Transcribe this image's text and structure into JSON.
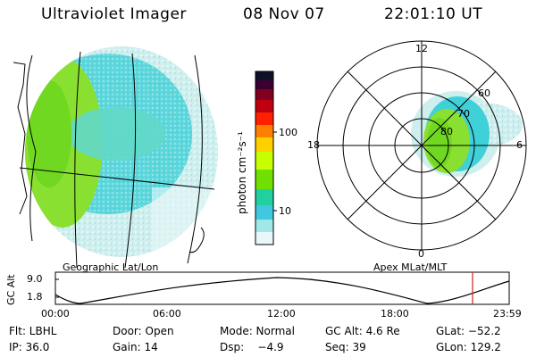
{
  "header": {
    "instrument": "Ultraviolet Imager",
    "date": "08 Nov 07",
    "time": "22:01:10 UT"
  },
  "panels": {
    "left_label": "Geographic Lat/Lon",
    "right_label": "Apex MLat/MLT"
  },
  "colorbar": {
    "label": "photon cm⁻²s⁻¹",
    "ticks": [
      "100",
      "10"
    ],
    "colors": [
      "#101028",
      "#3a0030",
      "#800020",
      "#c00010",
      "#ff2000",
      "#ff8000",
      "#ffd000",
      "#c8ff00",
      "#70e000",
      "#20d0a0",
      "#40c8e0",
      "#a0e8e8",
      "#e8f8f8"
    ]
  },
  "polar": {
    "hour_labels": {
      "top": "12",
      "left": "18",
      "right": "6",
      "bottom": "0"
    },
    "lat_labels": [
      "60",
      "70",
      "80"
    ]
  },
  "altitude_plot": {
    "ylabel": "GC Alt",
    "yticks": [
      "9.0",
      "1.8"
    ],
    "xticks": [
      "00:00",
      "06:00",
      "12:00",
      "18:00",
      "23:59"
    ],
    "marker_hours": 22.02,
    "marker_color": "#d02020"
  },
  "status": {
    "row1": [
      {
        "label": "Flt: LBHL"
      },
      {
        "label": "Door: Open"
      },
      {
        "label": "Mode: Normal"
      },
      {
        "label": "GC Alt: 4.6 Re"
      },
      {
        "label": "GLat: −52.2"
      }
    ],
    "row2": [
      {
        "label": "IP: 36.0"
      },
      {
        "label": "Gain: 14"
      },
      {
        "label": "Dsp:    −4.9"
      },
      {
        "label": "Seq: 39"
      },
      {
        "label": "GLon: 129.2"
      }
    ]
  }
}
